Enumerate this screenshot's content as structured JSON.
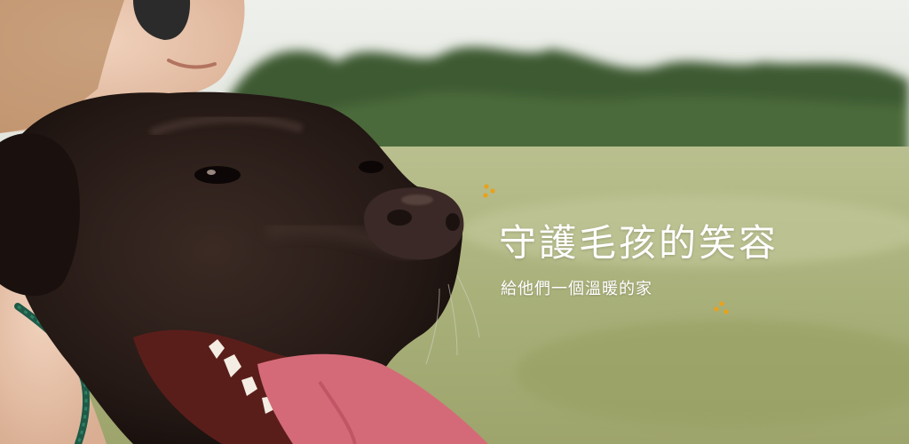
{
  "banner": {
    "headline": "守護毛孩的笑容",
    "subline": "給他們一個溫暖的家"
  },
  "decorations": {
    "sparkle_color": "#e8a21c",
    "sparkle_icon": "paw-dots-icon"
  },
  "photo": {
    "subject": "dog-with-owner-photo"
  }
}
